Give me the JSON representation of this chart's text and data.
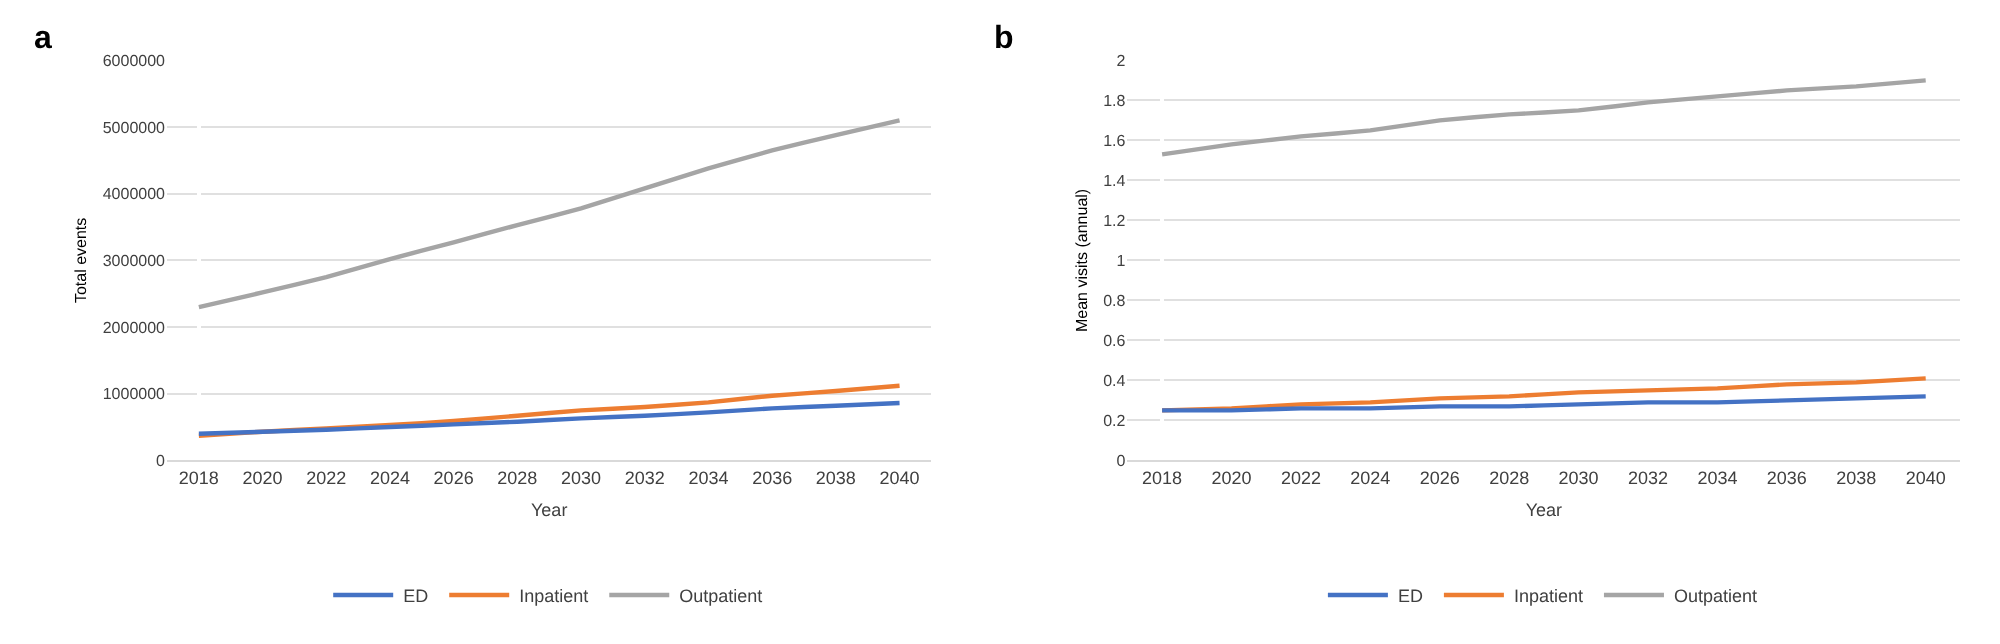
{
  "chart_data": [
    {
      "type": "line",
      "annotations": [
        "a"
      ],
      "xlabel": "Year",
      "ylabel": "Total events",
      "categories": [
        "2018",
        "2020",
        "2022",
        "2024",
        "2026",
        "2028",
        "2030",
        "2032",
        "2034",
        "2036",
        "2038",
        "2040"
      ],
      "series": [
        {
          "name": "ED",
          "color": "#4472c4",
          "values": [
            400000,
            430000,
            460000,
            500000,
            540000,
            580000,
            630000,
            670000,
            720000,
            780000,
            820000,
            860000
          ]
        },
        {
          "name": "Inpatient",
          "color": "#ed7d31",
          "values": [
            370000,
            430000,
            480000,
            530000,
            590000,
            670000,
            750000,
            800000,
            870000,
            970000,
            1040000,
            1120000
          ]
        },
        {
          "name": "Outpatient",
          "color": "#a5a5a5",
          "values": [
            2300000,
            2520000,
            2750000,
            3020000,
            3270000,
            3530000,
            3780000,
            4080000,
            4380000,
            4650000,
            4880000,
            5100000
          ]
        }
      ],
      "ylim": [
        0,
        6000000
      ],
      "yticks": [
        0,
        1000000,
        2000000,
        3000000,
        4000000,
        5000000,
        6000000
      ],
      "grid": "y",
      "legend": "bottom",
      "marker": "none",
      "line_style": "solid"
    },
    {
      "type": "line",
      "annotations": [
        "b"
      ],
      "xlabel": "Year",
      "ylabel": "Mean visits (annual)",
      "categories": [
        "2018",
        "2020",
        "2022",
        "2024",
        "2026",
        "2028",
        "2030",
        "2032",
        "2034",
        "2036",
        "2038",
        "2040"
      ],
      "series": [
        {
          "name": "ED",
          "color": "#4472c4",
          "values": [
            0.25,
            0.25,
            0.26,
            0.26,
            0.27,
            0.27,
            0.28,
            0.29,
            0.29,
            0.3,
            0.31,
            0.32
          ]
        },
        {
          "name": "Inpatient",
          "color": "#ed7d31",
          "values": [
            0.25,
            0.26,
            0.28,
            0.29,
            0.31,
            0.32,
            0.34,
            0.35,
            0.36,
            0.38,
            0.39,
            0.41
          ]
        },
        {
          "name": "Outpatient",
          "color": "#a5a5a5",
          "values": [
            1.53,
            1.58,
            1.62,
            1.65,
            1.7,
            1.73,
            1.75,
            1.79,
            1.82,
            1.85,
            1.87,
            1.9
          ]
        }
      ],
      "ylim": [
        0,
        2
      ],
      "yticks": [
        0,
        0.2,
        0.4,
        0.6,
        0.8,
        1,
        1.2,
        1.4,
        1.6,
        1.8,
        2
      ],
      "grid": "y",
      "legend": "bottom",
      "marker": "none",
      "line_style": "solid"
    }
  ]
}
